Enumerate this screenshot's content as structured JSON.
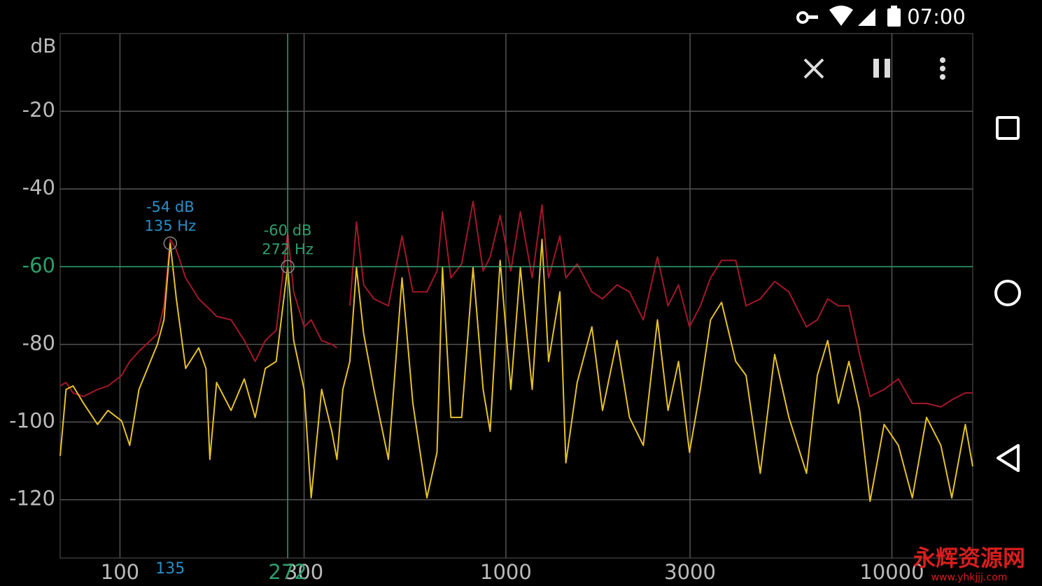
{
  "status_bar": {
    "time": "07:00"
  },
  "watermark": {
    "text": "永辉资源网",
    "url": "www.yhkjjj.com"
  },
  "chart_data": {
    "type": "line",
    "y_label": "dB",
    "log_x": true,
    "grid": true,
    "xlim": [
      70,
      16200
    ],
    "ylim": [
      -135,
      0
    ],
    "xticks": [
      100,
      300,
      1000,
      3000,
      10000
    ],
    "yticks": [
      -20,
      -40,
      -60,
      -80,
      -100,
      -120
    ],
    "x": [
      70,
      72.5,
      75.6,
      80.5,
      87.5,
      93.1,
      101,
      106,
      112,
      125,
      130,
      135,
      140,
      148,
      160,
      167,
      171,
      178,
      194,
      210,
      224,
      238,
      254,
      272,
      282,
      300,
      313,
      333,
      354,
      365,
      378,
      394,
      410,
      428,
      455,
      496,
      538,
      574,
      624,
      663,
      685,
      720,
      768,
      822,
      873,
      910,
      966,
      1030,
      1090,
      1170,
      1240,
      1290,
      1380,
      1430,
      1530,
      1670,
      1780,
      1940,
      2090,
      2270,
      2470,
      2630,
      2800,
      2990,
      3190,
      3390,
      3620,
      3940,
      4190,
      4560,
      4970,
      5410,
      6010,
      6410,
      6820,
      7270,
      7740,
      8250,
      8780,
      9550,
      10400,
      11300,
      12300,
      13400,
      14300,
      15500,
      16200
    ],
    "series": [
      {
        "color": "#a3182a",
        "values": [
          -90.7,
          -89.8,
          -92.5,
          -93.4,
          -91.6,
          -90.7,
          -88,
          -84.4,
          -81.8,
          -77.3,
          -70.1,
          -53,
          -55.7,
          -62.9,
          -68.3,
          -70.1,
          -71,
          -72.8,
          -73.7,
          -79,
          -84.4,
          -79,
          -76.4,
          -51.2,
          -66.5,
          -75.5,
          -73.7,
          -79,
          -80,
          -80.9,
          null,
          -70.1,
          -48.5,
          -64.7,
          -68.3,
          -70.1,
          -52.1,
          -66.5,
          -66.5,
          -61.1,
          -45.9,
          -62.9,
          -59.3,
          -43.2,
          -61.1,
          -57.5,
          -46.8,
          -61.1,
          -45.9,
          -62.9,
          -44.1,
          -62.9,
          -52.1,
          -62.9,
          -59.3,
          -66.5,
          -68.3,
          -64.7,
          -66.5,
          -73.7,
          -57.5,
          -70.1,
          -64.7,
          -75.5,
          -70.1,
          -62.9,
          -58.4,
          -58.4,
          -70.1,
          -68.3,
          -63.8,
          -66.5,
          -75.5,
          -73.7,
          -68.3,
          -70.1,
          -70.1,
          -82.6,
          -93.4,
          -91.6,
          -88.9,
          -95.2,
          -95.2,
          -96.1,
          -94.3,
          -92.5,
          -92.5
        ]
      },
      {
        "color": "#e6c229",
        "values": [
          -108.7,
          -91.6,
          -90.7,
          -95.2,
          -100.6,
          -97,
          -99.7,
          -106,
          -91.6,
          -80,
          -73.7,
          -54,
          -68.3,
          -86.2,
          -80.9,
          -86.2,
          -109.6,
          -89.8,
          -97,
          -88.9,
          -98.8,
          -86.2,
          -84.4,
          -60,
          -79,
          -91.6,
          -119.5,
          -91.6,
          -102.4,
          -109.6,
          -91.6,
          -84.4,
          -60.2,
          -77.3,
          -91.6,
          -109.6,
          -62.9,
          -95.2,
          -119.5,
          -107.8,
          -60.2,
          -98.8,
          -98.8,
          -60.2,
          -91.6,
          -102.4,
          -58.4,
          -91.6,
          -60.2,
          -91.6,
          -53,
          -84.4,
          -66.5,
          -110.5,
          -89.8,
          -75.5,
          -97,
          -79,
          -98.8,
          -106,
          -73.7,
          -97,
          -84.4,
          -107.8,
          -91.6,
          -73.7,
          -69.2,
          -84.4,
          -88,
          -113.2,
          -82.6,
          -98.8,
          -113.2,
          -88,
          -79,
          -95.2,
          -84.4,
          -97,
          -120.4,
          -100.6,
          -106,
          -119.5,
          -98.8,
          -106,
          -119.5,
          -100.6,
          -111.4
        ]
      }
    ],
    "markers": [
      {
        "x": 135,
        "y": -54,
        "db_label": "-54 dB",
        "hz_label": "135 Hz",
        "color": "#2a8fc8"
      },
      {
        "x": 272,
        "y": -60,
        "db_label": "-60 dB",
        "hz_label": "272 Hz",
        "color": "#2e9e6b",
        "cursor": true
      }
    ]
  }
}
